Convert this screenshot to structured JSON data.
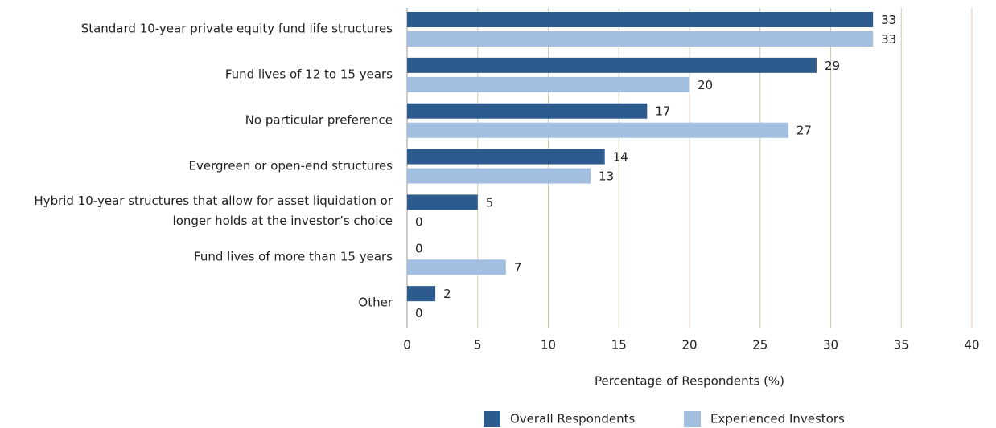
{
  "chart_data": {
    "type": "barh",
    "categories": [
      "Standard 10-year private equity fund life structures",
      "Fund lives of 12 to 15 years",
      "No particular preference",
      "Evergreen or open-end structures",
      "Hybrid 10-year structures that allow for asset liquidation or longer holds at the investor’s choice",
      "Fund lives of more than 15 years",
      "Other"
    ],
    "series": [
      {
        "name": "Overall Respondents",
        "color": "#2e5b8e",
        "values": [
          33,
          29,
          17,
          14,
          5,
          0,
          2
        ]
      },
      {
        "name": "Experienced Investors",
        "color": "#a3bfe0",
        "values": [
          33,
          20,
          27,
          13,
          0,
          7,
          0
        ]
      }
    ],
    "xlabel": "Percentage of Respondents (%)",
    "xlim": [
      0,
      40
    ],
    "xticks": [
      0,
      5,
      10,
      15,
      20,
      25,
      30,
      35,
      40
    ],
    "grid": true,
    "legend": "bottom"
  }
}
